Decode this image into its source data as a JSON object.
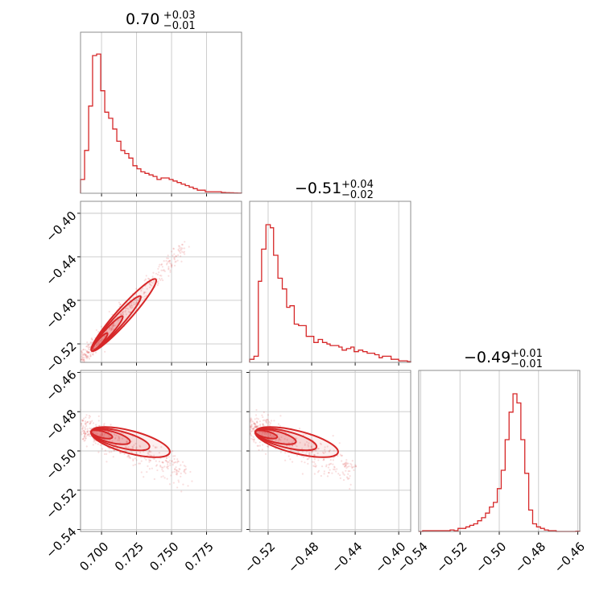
{
  "chart_data": {
    "type": "scatter",
    "subtype": "corner-plot",
    "color": "#d62728",
    "grid": true,
    "parameters": [
      {
        "title_value": "0.70",
        "title_plus": "+0.03",
        "title_minus": "−0.01",
        "range": [
          0.685,
          0.8
        ],
        "ticks": [
          "0.700",
          "0.725",
          "0.750",
          "0.775"
        ],
        "tick_values": [
          0.7,
          0.725,
          0.75,
          0.775
        ]
      },
      {
        "title_value": "−0.51",
        "title_plus": "+0.04",
        "title_minus": "−0.02",
        "range": [
          -0.537,
          -0.389
        ],
        "ticks": [
          "−0.52",
          "−0.48",
          "−0.44",
          "−0.40"
        ],
        "tick_values": [
          -0.52,
          -0.48,
          -0.44,
          -0.4
        ]
      },
      {
        "title_value": "−0.49",
        "title_plus": "+0.01",
        "title_minus": "−0.01",
        "range": [
          -0.541,
          -0.459
        ],
        "ticks": [
          "−0.54",
          "−0.52",
          "−0.50",
          "−0.48",
          "−0.46"
        ],
        "tick_values": [
          -0.54,
          -0.52,
          -0.5,
          -0.48,
          -0.46
        ]
      }
    ],
    "histograms": [
      {
        "param": 0,
        "bins": [
          0.685,
          0.6879,
          0.6908,
          0.6936,
          0.6965,
          0.6994,
          0.7023,
          0.7051,
          0.708,
          0.7109,
          0.7138,
          0.7166,
          0.7195,
          0.7224,
          0.7253,
          0.7281,
          0.731,
          0.7339,
          0.7368,
          0.7396,
          0.7425,
          0.7454,
          0.7483,
          0.7511,
          0.754,
          0.7569,
          0.7598,
          0.7626,
          0.7655,
          0.7684,
          0.7713,
          0.7741,
          0.777,
          0.7799,
          0.7828,
          0.7856,
          0.7885,
          0.7914,
          0.7943,
          0.7971,
          0.8
        ],
        "counts": [
          0.09,
          0.28,
          0.57,
          0.9,
          0.91,
          0.67,
          0.53,
          0.49,
          0.42,
          0.34,
          0.28,
          0.26,
          0.23,
          0.18,
          0.16,
          0.14,
          0.13,
          0.12,
          0.11,
          0.09,
          0.1,
          0.1,
          0.09,
          0.08,
          0.07,
          0.06,
          0.05,
          0.04,
          0.03,
          0.02,
          0.02,
          0.01,
          0.01,
          0.01,
          0.01,
          0.005,
          0.004,
          0.003,
          0.002,
          0.001
        ]
      },
      {
        "param": 1,
        "bins": [
          -0.537,
          -0.533,
          -0.529,
          -0.526,
          -0.522,
          -0.518,
          -0.515,
          -0.511,
          -0.507,
          -0.503,
          -0.5,
          -0.496,
          -0.492,
          -0.489,
          -0.485,
          -0.481,
          -0.478,
          -0.474,
          -0.47,
          -0.466,
          -0.463,
          -0.459,
          -0.455,
          -0.452,
          -0.448,
          -0.444,
          -0.441,
          -0.437,
          -0.433,
          -0.429,
          -0.426,
          -0.422,
          -0.418,
          -0.415,
          -0.411,
          -0.407,
          -0.404,
          -0.4,
          -0.396,
          -0.392,
          -0.389
        ],
        "counts": [
          0.02,
          0.04,
          0.53,
          0.74,
          0.9,
          0.88,
          0.7,
          0.55,
          0.48,
          0.36,
          0.37,
          0.25,
          0.24,
          0.24,
          0.17,
          0.17,
          0.13,
          0.15,
          0.13,
          0.12,
          0.11,
          0.11,
          0.1,
          0.08,
          0.09,
          0.1,
          0.07,
          0.08,
          0.07,
          0.06,
          0.06,
          0.05,
          0.03,
          0.04,
          0.04,
          0.02,
          0.02,
          0.01,
          0.01,
          0.005
        ]
      },
      {
        "param": 2,
        "bins": [
          -0.541,
          -0.539,
          -0.537,
          -0.535,
          -0.533,
          -0.531,
          -0.529,
          -0.527,
          -0.525,
          -0.523,
          -0.521,
          -0.519,
          -0.517,
          -0.515,
          -0.513,
          -0.511,
          -0.509,
          -0.507,
          -0.505,
          -0.503,
          -0.501,
          -0.499,
          -0.497,
          -0.495,
          -0.493,
          -0.491,
          -0.489,
          -0.487,
          -0.485,
          -0.483,
          -0.481,
          -0.479,
          -0.477,
          -0.475,
          -0.473,
          -0.471,
          -0.469,
          -0.467,
          -0.465,
          -0.463,
          -0.461,
          -0.459
        ],
        "counts": [
          0.0,
          0.005,
          0.005,
          0.005,
          0.005,
          0.005,
          0.005,
          0.005,
          0.01,
          0.005,
          0.02,
          0.02,
          0.03,
          0.04,
          0.05,
          0.07,
          0.09,
          0.12,
          0.16,
          0.19,
          0.28,
          0.4,
          0.6,
          0.78,
          0.9,
          0.84,
          0.6,
          0.38,
          0.14,
          0.05,
          0.03,
          0.02,
          0.01,
          0.005,
          0.005,
          0.0,
          0.0,
          0.0,
          0.0,
          0.0,
          0.002
        ]
      }
    ],
    "joint": [
      {
        "x_param": 0,
        "y_param": 1,
        "center": [
          0.696,
          -0.522
        ],
        "extent": [
          0.685,
          -0.535,
          0.76,
          -0.43
        ]
      },
      {
        "x_param": 0,
        "y_param": 2,
        "center": [
          0.697,
          -0.491
        ],
        "extent": [
          0.685,
          -0.505,
          0.76,
          -0.484
        ]
      },
      {
        "x_param": 1,
        "y_param": 2,
        "center": [
          -0.526,
          -0.491
        ],
        "extent": [
          -0.535,
          -0.505,
          -0.44,
          -0.484
        ]
      }
    ]
  }
}
